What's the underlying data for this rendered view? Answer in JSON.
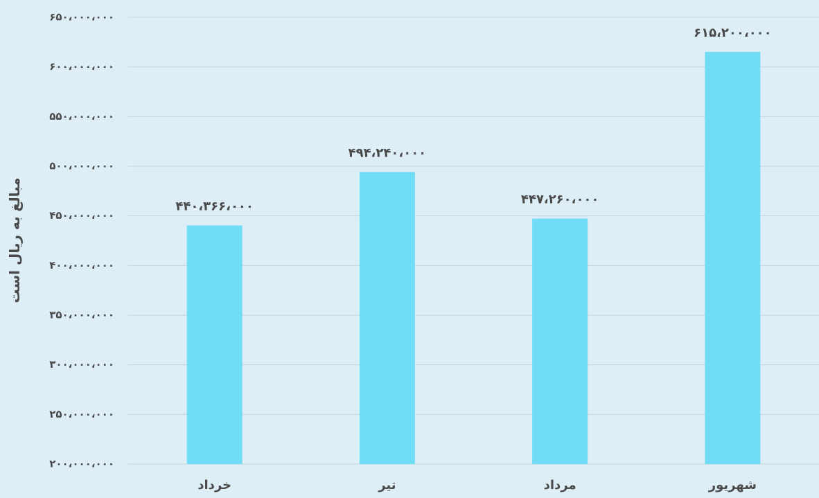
{
  "chart_data": {
    "type": "bar",
    "ylabel": "مبالغ به ریال است",
    "categories": [
      "خرداد",
      "تیر",
      "مرداد",
      "شهریور"
    ],
    "values": [
      440366000,
      494240000,
      447260000,
      615200000
    ],
    "value_labels": [
      "۴۴۰،۳۶۶،۰۰۰",
      "۴۹۴،۲۴۰،۰۰۰",
      "۴۴۷،۲۶۰،۰۰۰",
      "۶۱۵،۲۰۰،۰۰۰"
    ],
    "ylim": [
      200000000,
      650000000
    ],
    "ticks": [
      200000000,
      250000000,
      300000000,
      350000000,
      400000000,
      450000000,
      500000000,
      550000000,
      600000000,
      650000000
    ],
    "tick_labels": [
      "۲۰۰،۰۰۰،۰۰۰",
      "۲۵۰،۰۰۰،۰۰۰",
      "۳۰۰،۰۰۰،۰۰۰",
      "۳۵۰،۰۰۰،۰۰۰",
      "۴۰۰،۰۰۰،۰۰۰",
      "۴۵۰،۰۰۰،۰۰۰",
      "۵۰۰،۰۰۰،۰۰۰",
      "۵۵۰،۰۰۰،۰۰۰",
      "۶۰۰،۰۰۰،۰۰۰",
      "۶۵۰،۰۰۰،۰۰۰"
    ],
    "grid": true,
    "legend": "none",
    "colors": {
      "bar": "#71dcf6",
      "text": "#4a4a4a",
      "grid": "#c4d2db",
      "background": "#deeef7"
    }
  }
}
